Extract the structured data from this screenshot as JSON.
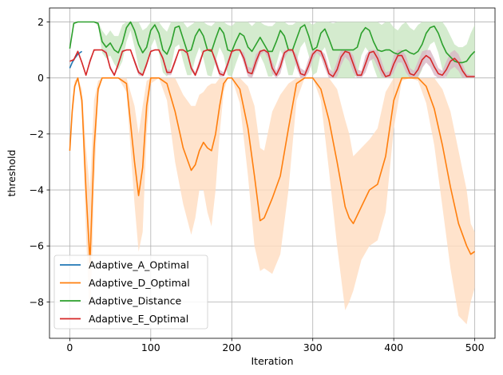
{
  "chart_data": {
    "type": "line",
    "title": "",
    "xlabel": "Iteration",
    "ylabel": "threshold",
    "xlim": [
      -25,
      525
    ],
    "ylim": [
      -9.3,
      2.5
    ],
    "xticks": [
      0,
      100,
      200,
      300,
      400,
      500
    ],
    "yticks": [
      -8,
      -6,
      -4,
      -2,
      0,
      2
    ],
    "xtick_labels": [
      "0",
      "100",
      "200",
      "300",
      "400",
      "500"
    ],
    "ytick_labels": [
      "−8",
      "−6",
      "−4",
      "−2",
      "0",
      "2"
    ],
    "grid": true,
    "legend_position": "lower-left",
    "legend_entries": [
      "Adaptive_A_Optimal",
      "Adaptive_D_Optimal",
      "Adaptive_Distance",
      "Adaptive_E_Optimal"
    ],
    "series": [
      {
        "name": "Adaptive_A_Optimal",
        "color": "#1f77b4",
        "x": [
          0,
          3,
          6,
          10,
          15
        ],
        "y": [
          0.35,
          0.55,
          0.7,
          0.85,
          0.95
        ]
      },
      {
        "name": "Adaptive_D_Optimal",
        "color": "#ff7f0e",
        "band_color": "#ffdcbf",
        "x": [
          0,
          3,
          6,
          10,
          15,
          20,
          25,
          30,
          35,
          40,
          50,
          60,
          70,
          80,
          85,
          90,
          95,
          100,
          110,
          120,
          130,
          140,
          150,
          155,
          160,
          165,
          170,
          175,
          180,
          185,
          190,
          195,
          200,
          210,
          220,
          228,
          235,
          240,
          250,
          260,
          270,
          280,
          290,
          300,
          310,
          320,
          330,
          340,
          345,
          350,
          360,
          370,
          380,
          390,
          400,
          410,
          420,
          430,
          440,
          450,
          460,
          470,
          480,
          490,
          495,
          500
        ],
        "y": [
          -2.6,
          -1.2,
          -0.3,
          0,
          -0.8,
          -4.0,
          -6.6,
          -2.5,
          -0.4,
          0,
          0,
          0,
          -0.2,
          -3.0,
          -4.2,
          -3.2,
          -1.0,
          0,
          0,
          -0.2,
          -1.2,
          -2.5,
          -3.3,
          -3.1,
          -2.6,
          -2.3,
          -2.5,
          -2.6,
          -2.0,
          -1.0,
          -0.2,
          0,
          0,
          -0.4,
          -1.8,
          -3.5,
          -5.1,
          -5.0,
          -4.3,
          -3.5,
          -1.8,
          -0.2,
          0,
          0,
          -0.4,
          -1.5,
          -3.0,
          -4.6,
          -5.0,
          -5.2,
          -4.6,
          -4.0,
          -3.8,
          -2.8,
          -0.8,
          0,
          0,
          0,
          -0.3,
          -1.1,
          -2.4,
          -3.9,
          -5.2,
          -6.0,
          -6.3,
          -6.2
        ],
        "band_lower": [
          -2.6,
          -1.5,
          -0.5,
          0,
          -1.2,
          -5.5,
          -8.9,
          -4.0,
          -0.6,
          0,
          0,
          0,
          -0.5,
          -4.5,
          -6.2,
          -5.5,
          -2.0,
          -0.2,
          0,
          -0.8,
          -3.0,
          -4.5,
          -5.6,
          -5.0,
          -4.0,
          -4.0,
          -4.8,
          -5.3,
          -4.0,
          -2.0,
          -0.5,
          0,
          0,
          -0.9,
          -3.5,
          -6.0,
          -6.9,
          -6.8,
          -7.0,
          -6.3,
          -4.0,
          -0.8,
          0,
          0,
          -0.8,
          -3.3,
          -6.0,
          -8.3,
          -8.0,
          -7.6,
          -6.5,
          -6.0,
          -5.8,
          -4.8,
          -1.8,
          -0.1,
          0,
          -0.1,
          -0.9,
          -2.4,
          -4.6,
          -6.8,
          -8.5,
          -8.8,
          -8.0,
          -7.5
        ],
        "band_upper": [
          -2.6,
          -0.8,
          -0.1,
          0,
          -0.4,
          -2.5,
          -4.0,
          -0.8,
          -0.1,
          0,
          0,
          0,
          0,
          -1.0,
          -2.0,
          -1.0,
          -0.1,
          0,
          0,
          0,
          0,
          -0.6,
          -1.0,
          -1.0,
          -0.6,
          -0.5,
          -0.3,
          -0.2,
          -0.2,
          0,
          0,
          0,
          0,
          0,
          -0.3,
          -1.0,
          -2.5,
          -2.6,
          -1.2,
          -0.6,
          -0.2,
          0,
          0,
          0,
          0,
          0,
          -0.4,
          -1.5,
          -2.0,
          -2.8,
          -2.5,
          -2.2,
          -1.8,
          -0.5,
          0,
          0,
          0,
          0,
          0,
          0,
          -0.4,
          -1.2,
          -2.6,
          -4.0,
          -5.2,
          -5.5
        ]
      },
      {
        "name": "Adaptive_Distance",
        "color": "#2ca02c",
        "band_color": "#c9e6c2",
        "x": [
          0,
          5,
          10,
          15,
          20,
          25,
          30,
          35,
          40,
          45,
          50,
          55,
          60,
          65,
          70,
          75,
          80,
          85,
          90,
          95,
          100,
          105,
          110,
          115,
          120,
          125,
          130,
          135,
          140,
          145,
          150,
          155,
          160,
          165,
          170,
          175,
          180,
          185,
          190,
          195,
          200,
          205,
          210,
          215,
          220,
          225,
          230,
          235,
          240,
          245,
          250,
          255,
          260,
          265,
          270,
          275,
          280,
          285,
          290,
          295,
          300,
          305,
          310,
          315,
          320,
          325,
          330,
          335,
          340,
          345,
          350,
          355,
          360,
          365,
          370,
          375,
          380,
          385,
          390,
          395,
          400,
          405,
          410,
          415,
          420,
          425,
          430,
          435,
          440,
          445,
          450,
          455,
          460,
          465,
          470,
          475,
          480,
          485,
          490,
          495,
          500
        ],
        "y": [
          1.05,
          1.95,
          2.0,
          2.0,
          2.0,
          2.0,
          2.0,
          1.95,
          1.3,
          1.1,
          1.25,
          1.0,
          0.9,
          1.25,
          1.8,
          2.0,
          1.7,
          1.2,
          0.9,
          1.1,
          1.7,
          1.9,
          1.6,
          1.0,
          0.85,
          1.2,
          1.8,
          1.85,
          1.4,
          0.95,
          1.0,
          1.5,
          1.75,
          1.5,
          1.0,
          0.95,
          1.4,
          1.8,
          1.6,
          1.0,
          0.95,
          1.3,
          1.6,
          1.5,
          1.1,
          0.95,
          1.2,
          1.45,
          1.2,
          0.95,
          0.95,
          1.3,
          1.7,
          1.5,
          1.0,
          1.0,
          1.4,
          1.8,
          1.9,
          1.5,
          1.0,
          1.1,
          1.6,
          1.75,
          1.4,
          1.0,
          1.0,
          1.0,
          1.0,
          1.0,
          1.0,
          1.1,
          1.6,
          1.8,
          1.7,
          1.3,
          1.0,
          0.95,
          1.0,
          1.0,
          0.9,
          0.85,
          0.95,
          1.0,
          0.9,
          0.85,
          0.95,
          1.2,
          1.6,
          1.8,
          1.85,
          1.6,
          1.2,
          0.9,
          0.75,
          0.6,
          0.55,
          0.55,
          0.6,
          0.8,
          0.95
        ],
        "band_lower": [
          1.05,
          1.9,
          2.0,
          2.0,
          2.0,
          2.0,
          2.0,
          1.85,
          0.9,
          0.7,
          0.8,
          0.5,
          0.3,
          0.6,
          1.3,
          1.7,
          1.1,
          0.4,
          0.1,
          0.4,
          1.1,
          1.4,
          0.9,
          0.2,
          0.05,
          0.4,
          1.1,
          1.2,
          0.6,
          0.1,
          0.1,
          0.7,
          1.1,
          0.7,
          0.1,
          0.05,
          0.6,
          1.1,
          0.8,
          0.1,
          0.05,
          0.5,
          0.9,
          0.7,
          0.2,
          0.05,
          0.4,
          0.8,
          0.5,
          0.05,
          0.05,
          0.5,
          1.0,
          0.7,
          0.1,
          0.1,
          0.6,
          1.1,
          1.3,
          0.8,
          0.1,
          0.2,
          0.9,
          1.1,
          0.6,
          0.05,
          0.0,
          0.0,
          0.0,
          0.0,
          0.0,
          0.1,
          0.8,
          1.1,
          0.9,
          0.4,
          0.0,
          0.0,
          0.0,
          0.0,
          0.0,
          0.0,
          0.0,
          0.0,
          0.0,
          0.0,
          0.0,
          0.3,
          0.9,
          1.2,
          1.3,
          0.9,
          0.3,
          0.0,
          0.0,
          0.0,
          0.0,
          0.0,
          0.0,
          0.0,
          0.0
        ],
        "band_upper": [
          1.05,
          2.0,
          2.0,
          2.0,
          2.0,
          2.0,
          2.0,
          2.0,
          1.7,
          1.5,
          1.7,
          1.5,
          1.5,
          1.9,
          2.0,
          2.0,
          2.0,
          2.0,
          1.7,
          1.8,
          2.0,
          2.0,
          2.0,
          1.8,
          1.65,
          2.0,
          2.0,
          2.0,
          2.0,
          1.8,
          1.9,
          2.0,
          2.0,
          2.0,
          1.9,
          1.85,
          2.0,
          2.0,
          2.0,
          1.9,
          1.85,
          2.0,
          2.0,
          2.0,
          2.0,
          1.85,
          2.0,
          2.0,
          1.9,
          1.85,
          1.85,
          2.0,
          2.0,
          2.0,
          1.9,
          1.9,
          2.0,
          2.0,
          2.0,
          2.0,
          1.9,
          2.0,
          2.0,
          2.0,
          2.0,
          1.95,
          2.0,
          2.0,
          2.0,
          2.0,
          2.0,
          2.0,
          2.0,
          2.0,
          2.0,
          2.0,
          2.0,
          1.9,
          2.0,
          2.0,
          1.8,
          1.7,
          1.9,
          2.0,
          1.8,
          1.7,
          1.9,
          2.0,
          2.0,
          2.0,
          2.0,
          2.0,
          2.0,
          1.8,
          1.5,
          1.2,
          1.1,
          1.1,
          1.2,
          1.6,
          1.9
        ]
      },
      {
        "name": "Adaptive_E_Optimal",
        "color": "#d62728",
        "band_color": "#d8b7c6",
        "x": [
          0,
          5,
          10,
          15,
          20,
          25,
          30,
          35,
          40,
          45,
          50,
          55,
          60,
          65,
          70,
          75,
          80,
          85,
          90,
          95,
          100,
          105,
          110,
          115,
          120,
          125,
          130,
          135,
          140,
          145,
          150,
          155,
          160,
          165,
          170,
          175,
          180,
          185,
          190,
          195,
          200,
          205,
          210,
          215,
          220,
          225,
          230,
          235,
          240,
          245,
          250,
          255,
          260,
          265,
          270,
          275,
          280,
          285,
          290,
          295,
          300,
          305,
          310,
          315,
          320,
          325,
          330,
          335,
          340,
          345,
          350,
          355,
          360,
          365,
          370,
          375,
          380,
          385,
          390,
          395,
          400,
          405,
          410,
          415,
          420,
          425,
          430,
          435,
          440,
          445,
          450,
          455,
          460,
          465,
          470,
          475,
          480,
          485,
          490,
          495,
          500
        ],
        "y": [
          0.6,
          0.65,
          0.95,
          0.55,
          0.1,
          0.6,
          1.0,
          1.0,
          1.0,
          0.9,
          0.35,
          0.1,
          0.5,
          0.95,
          1.0,
          1.0,
          0.6,
          0.2,
          0.1,
          0.5,
          0.95,
          1.0,
          1.0,
          0.7,
          0.2,
          0.2,
          0.6,
          1.0,
          1.0,
          0.9,
          0.35,
          0.1,
          0.5,
          0.95,
          1.0,
          1.0,
          0.6,
          0.15,
          0.1,
          0.5,
          0.95,
          1.0,
          1.0,
          0.7,
          0.2,
          0.15,
          0.6,
          0.95,
          1.0,
          0.9,
          0.35,
          0.1,
          0.4,
          0.9,
          1.0,
          1.0,
          0.6,
          0.15,
          0.1,
          0.45,
          0.85,
          1.0,
          0.95,
          0.6,
          0.15,
          0.05,
          0.3,
          0.75,
          0.95,
          0.9,
          0.5,
          0.1,
          0.1,
          0.5,
          0.9,
          0.95,
          0.7,
          0.3,
          0.05,
          0.1,
          0.5,
          0.8,
          0.8,
          0.5,
          0.15,
          0.1,
          0.3,
          0.65,
          0.8,
          0.7,
          0.4,
          0.15,
          0.1,
          0.3,
          0.6,
          0.7,
          0.55,
          0.25,
          0.05,
          0.05,
          0.05
        ],
        "band_lower": [
          0.6,
          0.6,
          0.9,
          0.5,
          0.1,
          0.5,
          0.95,
          1.0,
          1.0,
          0.8,
          0.3,
          0.05,
          0.4,
          0.9,
          1.0,
          1.0,
          0.5,
          0.1,
          0.05,
          0.4,
          0.9,
          1.0,
          1.0,
          0.6,
          0.1,
          0.1,
          0.5,
          0.95,
          1.0,
          0.8,
          0.25,
          0.05,
          0.35,
          0.9,
          1.0,
          0.95,
          0.45,
          0.05,
          0.05,
          0.35,
          0.85,
          1.0,
          0.95,
          0.5,
          0.05,
          0.0,
          0.35,
          0.8,
          0.95,
          0.7,
          0.15,
          0.0,
          0.15,
          0.7,
          0.95,
          0.9,
          0.35,
          0.0,
          0.0,
          0.2,
          0.65,
          0.9,
          0.75,
          0.35,
          0.0,
          0.0,
          0.05,
          0.45,
          0.75,
          0.6,
          0.2,
          0.0,
          0.0,
          0.2,
          0.6,
          0.7,
          0.4,
          0.05,
          0.0,
          0.0,
          0.2,
          0.55,
          0.55,
          0.2,
          0.0,
          0.0,
          0.05,
          0.35,
          0.55,
          0.4,
          0.1,
          0.0,
          0.0,
          0.05,
          0.3,
          0.4,
          0.25,
          0.0,
          0.0,
          0.0,
          0.0
        ],
        "band_upper": [
          0.6,
          0.7,
          1.0,
          0.6,
          0.15,
          0.7,
          1.0,
          1.0,
          1.0,
          1.0,
          0.45,
          0.15,
          0.6,
          1.0,
          1.0,
          1.0,
          0.7,
          0.3,
          0.15,
          0.6,
          1.0,
          1.0,
          1.0,
          0.8,
          0.3,
          0.3,
          0.7,
          1.0,
          1.0,
          1.0,
          0.45,
          0.2,
          0.65,
          1.0,
          1.0,
          1.0,
          0.75,
          0.3,
          0.2,
          0.65,
          1.0,
          1.0,
          1.0,
          0.9,
          0.4,
          0.35,
          0.85,
          1.0,
          1.0,
          1.0,
          0.6,
          0.25,
          0.65,
          1.0,
          1.0,
          1.0,
          0.85,
          0.35,
          0.25,
          0.7,
          1.0,
          1.0,
          1.0,
          0.85,
          0.35,
          0.2,
          0.6,
          1.0,
          1.0,
          1.0,
          0.8,
          0.3,
          0.25,
          0.8,
          1.0,
          1.0,
          1.0,
          0.6,
          0.2,
          0.25,
          0.8,
          1.0,
          1.0,
          0.8,
          0.35,
          0.25,
          0.6,
          0.95,
          1.0,
          1.0,
          0.7,
          0.35,
          0.25,
          0.6,
          0.9,
          1.0,
          0.85,
          0.5,
          0.15,
          0.1,
          0.1
        ]
      }
    ]
  }
}
